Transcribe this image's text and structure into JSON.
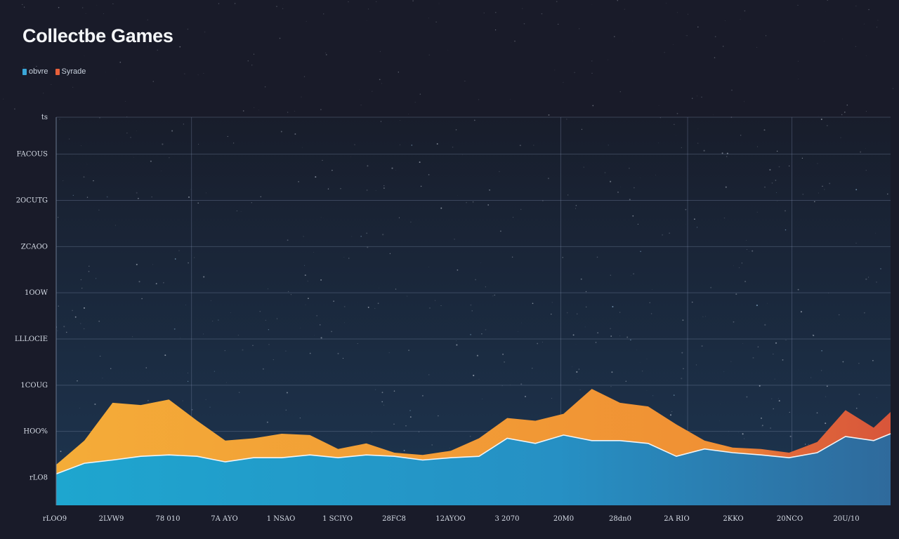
{
  "chart_data": {
    "type": "area",
    "stacked": true,
    "title": "Collectbe Games",
    "xlabel": "",
    "ylabel": "",
    "legend_position": "top-left",
    "grid": true,
    "x_tick_labels": [
      "rLOO9",
      "2LVW9",
      "78 010",
      "7A AYO",
      "1 NSAO",
      "1 SCIYO",
      "28FC8",
      "12AYOO",
      "3 2070",
      "20M0",
      "28dn0",
      "2A RIO",
      "2KKO",
      "20NCO",
      "20U/10"
    ],
    "y_tick_labels": [
      {
        "value": 1,
        "label": "rLO8"
      },
      {
        "value": 2,
        "label": "HOO%"
      },
      {
        "value": 3,
        "label": "1COUG"
      },
      {
        "value": 4,
        "label": "LLLOCIE"
      },
      {
        "value": 5,
        "label": "1OOW"
      },
      {
        "value": 6,
        "label": "ZCAOO"
      },
      {
        "value": 7,
        "label": "2OCUTG"
      },
      {
        "value": 8,
        "label": "FACOUS"
      },
      {
        "value": 8.8,
        "label": "ts"
      }
    ],
    "ylim": [
      0.4,
      8.8
    ],
    "xlim": [
      0,
      14.8
    ],
    "x": [
      0,
      0.5,
      1,
      1.5,
      2,
      2.5,
      3,
      3.5,
      4,
      4.5,
      5,
      5.5,
      6,
      6.5,
      7,
      7.5,
      8,
      8.5,
      9,
      9.5,
      10,
      10.5,
      11,
      11.5,
      12,
      12.5,
      13,
      13.5,
      14,
      14.5,
      14.8
    ],
    "series": [
      {
        "name": "obvre",
        "color": "#2a9ccc",
        "values": [
          1.08,
          1.31,
          1.38,
          1.46,
          1.49,
          1.46,
          1.34,
          1.43,
          1.43,
          1.49,
          1.43,
          1.49,
          1.46,
          1.38,
          1.43,
          1.46,
          1.85,
          1.74,
          1.92,
          1.8,
          1.8,
          1.74,
          1.46,
          1.62,
          1.54,
          1.49,
          1.43,
          1.54,
          1.89,
          1.8,
          1.95
        ]
      },
      {
        "name": "Syrade",
        "color": "#f0a034",
        "values": [
          0.2,
          0.49,
          1.24,
          1.11,
          1.2,
          0.77,
          0.46,
          0.42,
          0.52,
          0.43,
          0.19,
          0.25,
          0.08,
          0.11,
          0.15,
          0.39,
          0.44,
          0.49,
          0.46,
          1.12,
          0.82,
          0.8,
          0.69,
          0.18,
          0.11,
          0.13,
          0.11,
          0.23,
          0.57,
          0.28,
          0.47
        ]
      }
    ],
    "colors": {
      "background": "#191b29",
      "plot_background": "#1b2233",
      "accent_red": "#d8553a"
    }
  }
}
